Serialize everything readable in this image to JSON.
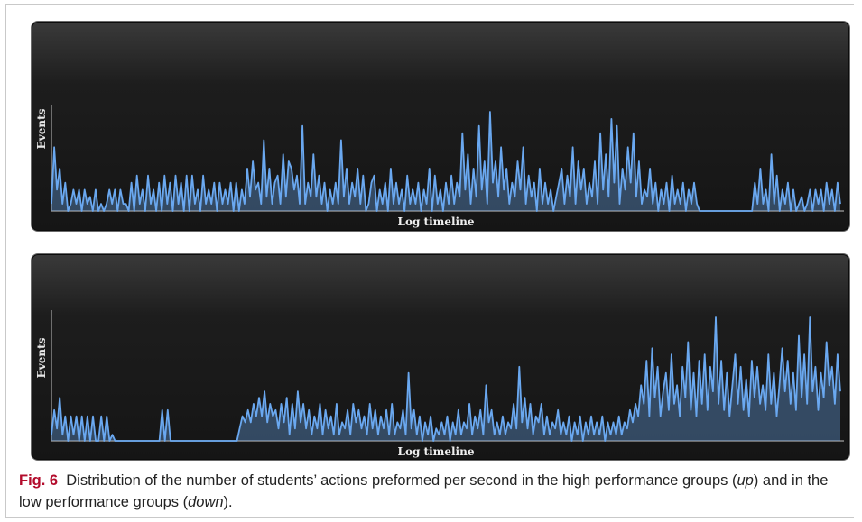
{
  "chart_data": [
    {
      "type": "area",
      "ylabel": "Events",
      "xlabel": "Log timeline",
      "series_color": "#6aa8f0",
      "values": [
        1,
        9,
        3,
        6,
        1,
        4,
        0,
        1,
        3,
        1,
        3,
        0,
        3,
        1,
        2,
        0,
        3,
        0,
        1,
        0,
        1,
        3,
        1,
        3,
        0,
        3,
        1,
        1,
        0,
        4,
        0,
        5,
        1,
        3,
        0,
        5,
        1,
        3,
        0,
        4,
        0,
        5,
        1,
        4,
        0,
        5,
        1,
        4,
        0,
        5,
        0,
        5,
        1,
        3,
        0,
        5,
        1,
        3,
        1,
        4,
        0,
        4,
        1,
        3,
        1,
        4,
        0,
        4,
        0,
        3,
        1,
        6,
        2,
        7,
        3,
        4,
        1,
        10,
        2,
        6,
        1,
        4,
        5,
        1,
        8,
        2,
        7,
        6,
        3,
        5,
        1,
        12,
        1,
        4,
        2,
        8,
        2,
        5,
        1,
        4,
        0,
        3,
        1,
        4,
        1,
        10,
        2,
        6,
        1,
        4,
        2,
        6,
        1,
        5,
        0,
        1,
        4,
        5,
        0,
        3,
        1,
        4,
        0,
        6,
        1,
        4,
        1,
        3,
        0,
        5,
        1,
        3,
        1,
        4,
        0,
        3,
        1,
        6,
        0,
        5,
        1,
        3,
        0,
        4,
        1,
        5,
        1,
        4,
        2,
        11,
        3,
        8,
        1,
        6,
        2,
        12,
        3,
        7,
        1,
        14,
        4,
        7,
        2,
        9,
        3,
        6,
        1,
        4,
        2,
        7,
        3,
        9,
        1,
        5,
        2,
        4,
        0,
        6,
        1,
        4,
        1,
        3,
        0,
        2,
        4,
        6,
        1,
        5,
        2,
        9,
        1,
        7,
        3,
        6,
        1,
        4,
        2,
        7,
        1,
        11,
        3,
        8,
        2,
        13,
        4,
        12,
        1,
        6,
        3,
        9,
        4,
        11,
        2,
        7,
        1,
        3,
        2,
        6,
        1,
        4,
        0,
        3,
        1,
        4,
        0,
        5,
        1,
        3,
        1,
        4,
        0,
        3,
        1,
        4,
        1,
        0,
        0,
        0,
        0,
        0,
        0,
        0,
        0,
        0,
        0,
        0,
        0,
        0,
        0,
        0,
        0,
        0,
        0,
        0,
        0,
        4,
        1,
        6,
        1,
        3,
        0,
        8,
        1,
        5,
        0,
        3,
        1,
        4,
        0,
        3,
        0,
        1,
        2,
        0,
        1,
        3,
        0,
        3,
        1,
        3,
        0,
        4,
        1,
        3,
        0,
        4,
        1
      ]
    },
    {
      "type": "area",
      "ylabel": "Events",
      "xlabel": "Log timeline",
      "series_color": "#6aa8f0",
      "values": [
        1,
        5,
        2,
        7,
        1,
        4,
        0,
        4,
        1,
        4,
        0,
        4,
        0,
        4,
        0,
        4,
        0,
        0,
        4,
        0,
        4,
        0,
        1,
        0,
        0,
        0,
        0,
        0,
        0,
        0,
        0,
        0,
        0,
        0,
        0,
        0,
        0,
        0,
        0,
        0,
        5,
        0,
        5,
        0,
        0,
        0,
        0,
        0,
        0,
        0,
        0,
        0,
        0,
        0,
        0,
        0,
        0,
        0,
        0,
        0,
        0,
        0,
        0,
        0,
        0,
        0,
        0,
        0,
        2,
        4,
        3,
        5,
        3,
        6,
        4,
        7,
        4,
        8,
        3,
        6,
        4,
        5,
        2,
        6,
        3,
        7,
        1,
        6,
        2,
        8,
        3,
        6,
        2,
        5,
        1,
        4,
        2,
        6,
        1,
        5,
        2,
        4,
        1,
        6,
        1,
        3,
        2,
        5,
        1,
        6,
        3,
        5,
        2,
        4,
        1,
        6,
        2,
        5,
        1,
        4,
        2,
        5,
        1,
        6,
        1,
        3,
        2,
        5,
        1,
        11,
        2,
        5,
        1,
        4,
        0,
        3,
        1,
        4,
        0,
        2,
        1,
        3,
        1,
        4,
        0,
        3,
        1,
        5,
        1,
        3,
        2,
        6,
        1,
        4,
        2,
        5,
        1,
        9,
        3,
        5,
        1,
        3,
        1,
        4,
        1,
        3,
        2,
        6,
        2,
        12,
        3,
        7,
        2,
        6,
        1,
        4,
        3,
        6,
        1,
        4,
        1,
        3,
        2,
        5,
        1,
        3,
        1,
        4,
        0,
        3,
        1,
        4,
        0,
        3,
        1,
        4,
        1,
        3,
        1,
        4,
        0,
        3,
        1,
        3,
        1,
        4,
        1,
        3,
        2,
        5,
        3,
        6,
        4,
        9,
        6,
        13,
        4,
        15,
        7,
        12,
        4,
        8,
        11,
        5,
        14,
        6,
        9,
        4,
        12,
        7,
        16,
        5,
        11,
        4,
        13,
        6,
        14,
        5,
        12,
        8,
        20,
        6,
        13,
        5,
        11,
        4,
        9,
        14,
        6,
        12,
        5,
        10,
        4,
        13,
        7,
        12,
        6,
        9,
        5,
        14,
        6,
        11,
        4,
        9,
        15,
        8,
        13,
        6,
        11,
        5,
        17,
        7,
        14,
        6,
        20,
        8,
        12,
        5,
        11,
        7,
        16,
        9,
        12,
        6,
        14,
        8
      ]
    }
  ],
  "caption": {
    "fig_label": "Fig. 6",
    "text_1": "Distribution of the number of students’ actions preformed per second in the high performance groups (",
    "italic_1": "up",
    "text_2": ") and in the low performance groups (",
    "italic_2": "down",
    "text_3": ")."
  }
}
